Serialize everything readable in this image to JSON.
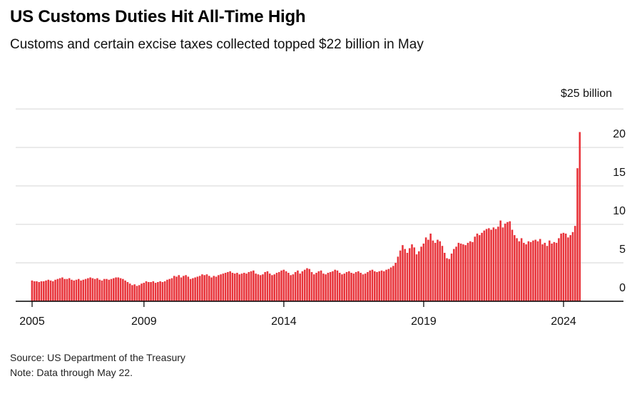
{
  "title": "US Customs Duties Hit All-Time High",
  "subtitle": "Customs and certain excise taxes collected topped $22 billion in May",
  "source": "Source: US Department of the Treasury",
  "note": "Note: Data through May 22.",
  "colors": {
    "bar": "#e8333a",
    "grid": "#d6d6d6",
    "axis": "#000000"
  },
  "chart_data": {
    "type": "bar",
    "x_start": "2005-01",
    "x_frequency": "monthly",
    "x_ticks": [
      2005,
      2009,
      2014,
      2019,
      2024
    ],
    "y_ticks": [
      0,
      5,
      10,
      15,
      20,
      25
    ],
    "y_tick_labels": [
      "0",
      "5",
      "10",
      "15",
      "20",
      "$25 billion"
    ],
    "ylim": [
      0,
      25
    ],
    "y_unit": "billion USD",
    "annotation_max": "topped $22 billion in May",
    "years": [
      {
        "year": 2005,
        "values": [
          2.7,
          2.6,
          2.6,
          2.5,
          2.6,
          2.6,
          2.7,
          2.8,
          2.7,
          2.6,
          2.8,
          2.9
        ]
      },
      {
        "year": 2006,
        "values": [
          3.0,
          3.1,
          2.9,
          2.9,
          3.0,
          2.8,
          2.7,
          2.8,
          2.9,
          2.7,
          2.8,
          2.9
        ]
      },
      {
        "year": 2007,
        "values": [
          3.0,
          3.1,
          3.0,
          2.9,
          3.0,
          2.8,
          2.7,
          2.9,
          2.9,
          2.8,
          2.9,
          3.0
        ]
      },
      {
        "year": 2008,
        "values": [
          3.1,
          3.1,
          3.0,
          2.9,
          2.7,
          2.5,
          2.3,
          2.1,
          2.2,
          2.0,
          2.1,
          2.3
        ]
      },
      {
        "year": 2009,
        "values": [
          2.4,
          2.6,
          2.5,
          2.5,
          2.6,
          2.4,
          2.5,
          2.6,
          2.5,
          2.6,
          2.8,
          2.9
        ]
      },
      {
        "year": 2010,
        "values": [
          3.0,
          3.3,
          3.2,
          3.4,
          3.1,
          3.3,
          3.4,
          3.2,
          2.9,
          3.0,
          3.1,
          3.2
        ]
      },
      {
        "year": 2011,
        "values": [
          3.3,
          3.5,
          3.4,
          3.5,
          3.3,
          3.1,
          3.3,
          3.2,
          3.4,
          3.5,
          3.6,
          3.7
        ]
      },
      {
        "year": 2012,
        "values": [
          3.8,
          3.9,
          3.7,
          3.6,
          3.7,
          3.5,
          3.6,
          3.7,
          3.6,
          3.8,
          3.9,
          4.0
        ]
      },
      {
        "year": 2013,
        "values": [
          3.6,
          3.5,
          3.4,
          3.5,
          3.8,
          3.9,
          3.6,
          3.4,
          3.5,
          3.7,
          3.8,
          4.0
        ]
      },
      {
        "year": 2014,
        "values": [
          4.1,
          3.9,
          3.7,
          3.4,
          3.5,
          3.8,
          4.0,
          3.6,
          3.9,
          4.1,
          4.3,
          4.2
        ]
      },
      {
        "year": 2015,
        "values": [
          3.8,
          3.5,
          3.7,
          3.9,
          4.0,
          3.6,
          3.5,
          3.7,
          3.8,
          3.9,
          4.1,
          4.0
        ]
      },
      {
        "year": 2016,
        "values": [
          3.7,
          3.5,
          3.6,
          3.8,
          3.9,
          3.7,
          3.6,
          3.8,
          3.9,
          3.7,
          3.5,
          3.6
        ]
      },
      {
        "year": 2017,
        "values": [
          3.8,
          4.0,
          4.1,
          3.9,
          3.8,
          3.9,
          4.0,
          3.9,
          4.1,
          4.2,
          4.4,
          4.6
        ]
      },
      {
        "year": 2018,
        "values": [
          5.0,
          5.8,
          6.6,
          7.3,
          6.8,
          6.3,
          6.9,
          7.4,
          7.0,
          6.1,
          6.5,
          7.1
        ]
      },
      {
        "year": 2019,
        "values": [
          7.5,
          8.3,
          8.0,
          8.8,
          7.9,
          7.6,
          8.0,
          7.8,
          7.2,
          6.3,
          5.6,
          5.5
        ]
      },
      {
        "year": 2020,
        "values": [
          6.2,
          6.8,
          7.1,
          7.6,
          7.5,
          7.4,
          7.3,
          7.6,
          7.8,
          7.7,
          8.4,
          8.8
        ]
      },
      {
        "year": 2021,
        "values": [
          8.6,
          8.9,
          9.2,
          9.4,
          9.5,
          9.3,
          9.6,
          9.4,
          9.7,
          10.5,
          9.6,
          10.1
        ]
      },
      {
        "year": 2022,
        "values": [
          10.3,
          10.4,
          9.3,
          8.6,
          8.2,
          7.8,
          8.2,
          7.6,
          7.4,
          7.8,
          7.7,
          7.9
        ]
      },
      {
        "year": 2023,
        "values": [
          8.0,
          7.8,
          8.1,
          7.4,
          7.6,
          7.2,
          7.9,
          7.5,
          7.7,
          7.6,
          8.2,
          8.8
        ]
      },
      {
        "year": 2024,
        "values": [
          8.9,
          8.8,
          8.3,
          8.6,
          9.0,
          9.8,
          17.3,
          22.0
        ]
      }
    ]
  }
}
